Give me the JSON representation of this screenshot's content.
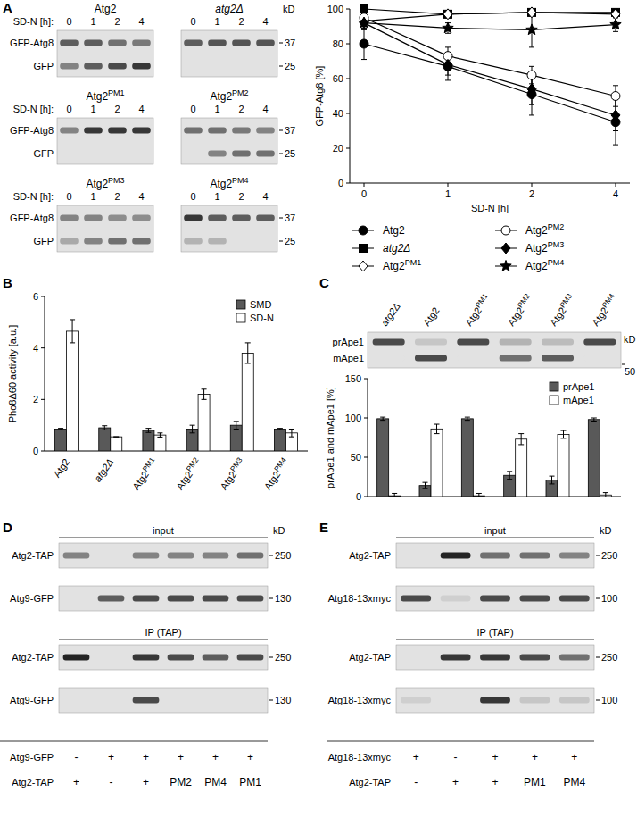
{
  "panel_labels": [
    "A",
    "B",
    "C",
    "D",
    "E"
  ],
  "blots_a": {
    "time_label": "SD-N [h]:",
    "lanes": [
      "0",
      "1",
      "2",
      "4"
    ],
    "row_labels": [
      "GFP-Atg8",
      "GFP"
    ],
    "kd_unit": "kD",
    "kd_values": [
      "37",
      "25"
    ],
    "blots": [
      {
        "title": "Atg2",
        "bands": [
          [
            0.7,
            0.7,
            0.6,
            0.55
          ],
          [
            0.5,
            0.7,
            0.8,
            0.9
          ]
        ]
      },
      {
        "title": "atg2Δ",
        "bands": [
          [
            0.7,
            0.75,
            0.75,
            0.75
          ],
          [
            0,
            0,
            0,
            0
          ]
        ]
      },
      {
        "title": "Atg2PM1",
        "bands": [
          [
            0.5,
            0.9,
            0.9,
            0.9
          ],
          [
            0,
            0,
            0,
            0
          ]
        ]
      },
      {
        "title": "Atg2PM2",
        "bands": [
          [
            0.6,
            0.6,
            0.55,
            0.5
          ],
          [
            0,
            0.5,
            0.6,
            0.6
          ]
        ]
      },
      {
        "title": "Atg2PM3",
        "bands": [
          [
            0.5,
            0.5,
            0.45,
            0.45
          ],
          [
            0.3,
            0.5,
            0.6,
            0.6
          ]
        ]
      },
      {
        "title": "Atg2PM4",
        "bands": [
          [
            0.9,
            0.7,
            0.7,
            0.7
          ],
          [
            0.25,
            0.25,
            0,
            0
          ]
        ]
      }
    ]
  },
  "chart_data": [
    {
      "type": "line",
      "x_label": "SD-N [h]",
      "y_label": "GFP-Atg8 [%]",
      "categories": [
        "0",
        "1",
        "2",
        "4"
      ],
      "ylim": [
        0,
        100
      ],
      "yticks": [
        0,
        20,
        40,
        60,
        80,
        100
      ],
      "legend": "bottom",
      "series": [
        {
          "name": "Atg2",
          "color": "#000000",
          "marker": "circle",
          "values": [
            80,
            67,
            51,
            35
          ],
          "errors": [
            9,
            8,
            12,
            13
          ]
        },
        {
          "name": "atg2Δ",
          "color": "#000000",
          "marker": "square",
          "values": [
            100,
            97,
            98,
            98
          ],
          "errors": [
            1,
            2,
            1,
            2
          ]
        },
        {
          "name": "Atg2PM1",
          "color": "#000000",
          "marker": "diamond-open",
          "values": [
            93,
            97,
            98,
            97
          ],
          "errors": [
            2,
            2,
            1,
            2
          ]
        },
        {
          "name": "Atg2PM2",
          "color": "#000000",
          "marker": "circle-open",
          "values": [
            95,
            73,
            62,
            50
          ],
          "errors": [
            3,
            5,
            5,
            6
          ]
        },
        {
          "name": "Atg2PM3",
          "color": "#000000",
          "marker": "diamond",
          "values": [
            92,
            68,
            54,
            39
          ],
          "errors": [
            4,
            6,
            9,
            9
          ]
        },
        {
          "name": "Atg2PM4",
          "color": "#000000",
          "marker": "star",
          "values": [
            92,
            89,
            88,
            91
          ],
          "errors": [
            2,
            3,
            10,
            4
          ]
        }
      ]
    },
    {
      "type": "bar",
      "y_label": "Pho8Δ60 activity [a.u.]",
      "categories": [
        "Atg2",
        "atg2Δ",
        "Atg2PM1",
        "Atg2PM2",
        "Atg2PM3",
        "Atg2PM4"
      ],
      "ylim": [
        0,
        6
      ],
      "yticks": [
        0,
        2,
        4,
        6
      ],
      "legend": "top-right",
      "series": [
        {
          "name": "SMD",
          "color": "#595959",
          "values": [
            0.85,
            0.9,
            0.8,
            0.85,
            1.0,
            0.85
          ],
          "errors": [
            0.03,
            0.08,
            0.08,
            0.15,
            0.15,
            0.03
          ]
        },
        {
          "name": "SD-N",
          "color": "#ffffff",
          "values": [
            4.65,
            0.55,
            0.62,
            2.2,
            3.8,
            0.7
          ],
          "errors": [
            0.45,
            0,
            0.08,
            0.2,
            0.4,
            0.15
          ]
        }
      ]
    },
    {
      "type": "bar",
      "y_label": "prApe1 and mApe1 [%]",
      "categories": [
        "atg2Δ",
        "Atg2",
        "Atg2PM1",
        "Atg2PM2",
        "Atg2PM3",
        "Atg2PM4"
      ],
      "ylim": [
        0,
        150
      ],
      "yticks": [
        0,
        50,
        100,
        150
      ],
      "legend": "top-right",
      "tick_labels": "y",
      "series": [
        {
          "name": "prApe1",
          "color": "#595959",
          "values": [
            99,
            14,
            99,
            27,
            21,
            98
          ],
          "errors": [
            2,
            4,
            2,
            5,
            5,
            2
          ]
        },
        {
          "name": "mApe1",
          "color": "#ffffff",
          "values": [
            1,
            86,
            1,
            73,
            79,
            2
          ],
          "errors": [
            3,
            6,
            3,
            7,
            5,
            3
          ]
        }
      ]
    }
  ],
  "blot_c": {
    "row_labels": [
      "prApe1",
      "mApe1"
    ],
    "kd_unit": "kD",
    "kd_values": [
      "50"
    ],
    "bands": [
      [
        0.8,
        0.15,
        0.8,
        0.25,
        0.2,
        0.8
      ],
      [
        0,
        0.8,
        0,
        0.6,
        0.7,
        0
      ]
    ]
  },
  "blot_d": {
    "kd_unit": "kD",
    "sections": [
      {
        "title": "input",
        "rows": [
          {
            "label": "Atg2-TAP",
            "kd": "250",
            "bands": [
              0.5,
              0,
              0.5,
              0.5,
              0.5,
              0.6
            ]
          },
          {
            "label": "Atg9-GFP",
            "kd": "130",
            "bands": [
              0,
              0.7,
              0.8,
              0.8,
              0.8,
              0.8
            ]
          }
        ]
      },
      {
        "title": "IP (TAP)",
        "rows": [
          {
            "label": "Atg2-TAP",
            "kd": "250",
            "bands": [
              1,
              0,
              0.9,
              0.8,
              0.7,
              0.8
            ]
          },
          {
            "label": "Atg9-GFP",
            "kd": "130",
            "bands": [
              0,
              0,
              0.8,
              0,
              0,
              0
            ]
          }
        ]
      }
    ],
    "conditions": [
      {
        "label": "Atg9-GFP",
        "values": [
          "-",
          "+",
          "+",
          "+",
          "+",
          "+"
        ]
      },
      {
        "label": "Atg2-TAP",
        "values": [
          "+",
          "-",
          "+",
          "PM2",
          "PM4",
          "PM1"
        ]
      }
    ]
  },
  "blot_e": {
    "kd_unit": "kD",
    "sections": [
      {
        "title": "input",
        "rows": [
          {
            "label": "Atg2-TAP",
            "kd": "250",
            "bands": [
              0,
              1,
              0.6,
              0.6,
              0.5
            ]
          },
          {
            "label": "Atg18-13xmyc",
            "kd": "100",
            "bands": [
              0.8,
              0.1,
              0.8,
              0.8,
              0.8
            ]
          }
        ]
      },
      {
        "title": "IP (TAP)",
        "rows": [
          {
            "label": "Atg2-TAP",
            "kd": "250",
            "bands": [
              0,
              0.9,
              0.9,
              0.8,
              0.6
            ]
          },
          {
            "label": "Atg18-13xmyc",
            "kd": "100",
            "bands": [
              0.1,
              0,
              0.9,
              0.15,
              0.15
            ]
          }
        ]
      }
    ],
    "conditions": [
      {
        "label": "Atg18-13xmyc",
        "values": [
          "+",
          "-",
          "+",
          "+",
          "+"
        ]
      },
      {
        "label": "Atg2-TAP",
        "values": [
          "-",
          "+",
          "+",
          "PM1",
          "PM4"
        ]
      }
    ]
  }
}
